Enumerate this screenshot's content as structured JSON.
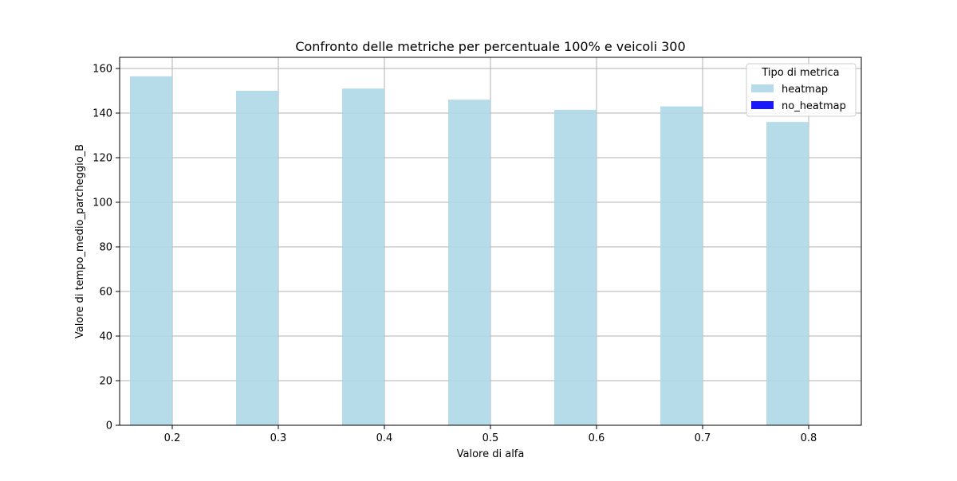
{
  "colors": {
    "heatmap": "#add8e6",
    "no_heatmap": "#0000ff",
    "grid": "#b0b0b0",
    "axis": "#000000",
    "background": "#ffffff"
  },
  "chart_data": {
    "type": "bar",
    "title": "Confronto delle metriche per percentuale 100% e veicoli 300",
    "xlabel": "Valore di alfa",
    "ylabel": "Valore di tempo_medio_parcheggio_B",
    "categories": [
      "0.2",
      "0.3",
      "0.4",
      "0.5",
      "0.6",
      "0.7",
      "0.8"
    ],
    "ylim": [
      0,
      165
    ],
    "yticks": [
      0,
      20,
      40,
      60,
      80,
      100,
      120,
      140,
      160
    ],
    "grid": true,
    "legend": {
      "title": "Tipo di metrica",
      "placement": "top-right",
      "entries": [
        "heatmap",
        "no_heatmap"
      ]
    },
    "series": [
      {
        "name": "heatmap",
        "values": [
          156.5,
          150.0,
          151.0,
          146.0,
          141.5,
          143.0,
          136.0
        ]
      },
      {
        "name": "no_heatmap",
        "values": [
          0,
          0,
          0,
          0,
          0,
          0,
          0
        ]
      }
    ]
  }
}
